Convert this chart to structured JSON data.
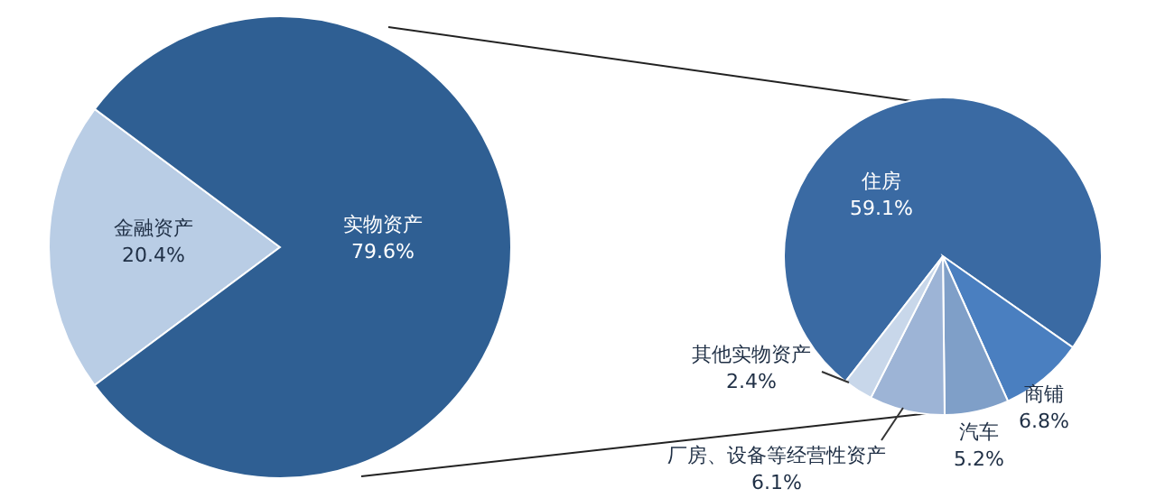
{
  "chart_data": [
    {
      "type": "pie",
      "categories": [
        "金融资产",
        "实物资产"
      ],
      "values": [
        20.4,
        79.6
      ],
      "colors": [
        "#b9cde5",
        "#2f5f93"
      ],
      "value_labels": [
        "20.4%",
        "79.6%"
      ]
    },
    {
      "type": "pie",
      "categories": [
        "住房",
        "商铺",
        "汽车",
        "厂房、设备等经营性资产",
        "其他实物资产"
      ],
      "values": [
        59.1,
        6.8,
        5.2,
        6.1,
        2.4
      ],
      "colors": [
        "#3a6aa3",
        "#4a7fc0",
        "#7f9fc8",
        "#9db4d6",
        "#c8d7ea"
      ],
      "value_labels": [
        "59.1%",
        "6.8%",
        "5.2%",
        "6.1%",
        "2.4%"
      ]
    }
  ]
}
